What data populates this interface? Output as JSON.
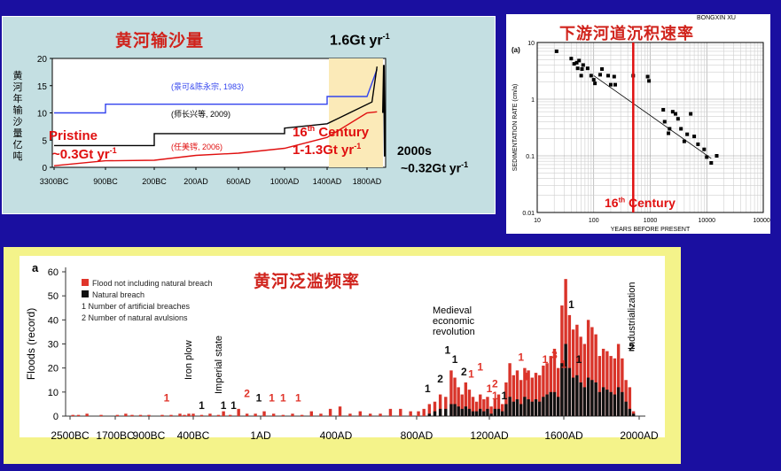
{
  "top_left": {
    "title": "黄河输沙量",
    "ylabel": "黄河年输沙量 亿吨",
    "annotations": {
      "gt_now_num": "1.6Gt yr",
      "gt_now_sup": "-1",
      "pristine": "Pristine",
      "pristine_val": "~0.3Gt yr",
      "pristine_sup": "-1",
      "century_num": "16",
      "century_sup": "th",
      "century_word": " Century",
      "century_val": "1-1.3Gt yr",
      "century_val_sup": "-1",
      "y2000": "2000s",
      "y2000_val": "~0.32Gt yr",
      "y2000_sup": "-1"
    }
  },
  "top_right": {
    "title": "下游河道沉积速率",
    "author": "BONGXIN XU",
    "panel_letter": "(a)",
    "century_num": "16",
    "century_sup": "th",
    "century_word": " Century"
  },
  "bottom": {
    "title": "黄河泛滥频率",
    "panel_letter": "a"
  },
  "chart_data": [
    {
      "type": "line",
      "ylabel": "黄河年输沙量 亿吨",
      "ylim": [
        0,
        20
      ],
      "yticks": [
        "0",
        "5",
        "10",
        "15",
        "20"
      ],
      "xtick_labels": [
        "3300BC",
        "900BC",
        "200BC",
        "200AD",
        "600AD",
        "1000AD",
        "1400AD",
        "1800AD"
      ],
      "series": [
        {
          "name": "(景可&陈永宗, 1983)",
          "color": "#3344ee",
          "points": [
            [
              "3300BC",
              10
            ],
            [
              "900BC",
              10
            ],
            [
              "900BC",
              11.6
            ],
            [
              "1400AD",
              11.6
            ],
            [
              "1400AD",
              13
            ],
            [
              "1800AD",
              13
            ],
            [
              "1900AD",
              18
            ]
          ]
        },
        {
          "name": "(师长兴等, 2009)",
          "color": "#000000",
          "points": [
            [
              "3300BC",
              4
            ],
            [
              "200BC",
              4
            ],
            [
              "200BC",
              6.2
            ],
            [
              "1000AD",
              6.2
            ],
            [
              "1000AD",
              7.2
            ],
            [
              "1400AD",
              8
            ],
            [
              "1850AD",
              12
            ],
            [
              "1900AD",
              18.5
            ]
          ]
        },
        {
          "name": "(任美锷, 2006)",
          "color": "#e01010",
          "points": [
            [
              "3300BC",
              0.3
            ],
            [
              "900BC",
              1.2
            ],
            [
              "200BC",
              1.3
            ],
            [
              "200AD",
              2.2
            ],
            [
              "600AD",
              2.6
            ],
            [
              "1000AD",
              3.5
            ],
            [
              "1400AD",
              5.5
            ],
            [
              "1800AD",
              10
            ],
            [
              "1900AD",
              10.2
            ]
          ]
        }
      ]
    },
    {
      "type": "scatter",
      "xlabel": "YEARS BEFORE PRESENT",
      "ylabel": "SEDIMENTATION RATE (cm/a)",
      "xscale": "log",
      "yscale": "log",
      "xtick_labels": [
        "10",
        "100",
        "1000",
        "10000",
        "100000"
      ],
      "ytick_labels": [
        "0.01",
        "0.1",
        "1",
        "10"
      ],
      "xlim": [
        10,
        100000
      ],
      "ylim": [
        0.01,
        10
      ],
      "vertical_line_x": 500,
      "points": [
        [
          22,
          7
        ],
        [
          40,
          5.2
        ],
        [
          45,
          4.2
        ],
        [
          50,
          4.4
        ],
        [
          52,
          3.5
        ],
        [
          55,
          4.8
        ],
        [
          60,
          2.6
        ],
        [
          62,
          3.4
        ],
        [
          65,
          4
        ],
        [
          78,
          3.5
        ],
        [
          90,
          2.6
        ],
        [
          100,
          2.2
        ],
        [
          105,
          1.9
        ],
        [
          130,
          2.7
        ],
        [
          140,
          3.4
        ],
        [
          180,
          2.6
        ],
        [
          200,
          1.8
        ],
        [
          230,
          2.5
        ],
        [
          240,
          1.8
        ],
        [
          500,
          2.6
        ],
        [
          900,
          2.5
        ],
        [
          950,
          2.1
        ],
        [
          1700,
          0.65
        ],
        [
          1800,
          0.4
        ],
        [
          2100,
          0.25
        ],
        [
          2200,
          0.3
        ],
        [
          2500,
          0.6
        ],
        [
          2800,
          0.55
        ],
        [
          3100,
          0.45
        ],
        [
          3500,
          0.3
        ],
        [
          4000,
          0.18
        ],
        [
          4500,
          0.24
        ],
        [
          5200,
          0.55
        ],
        [
          6000,
          0.22
        ],
        [
          7000,
          0.16
        ],
        [
          9000,
          0.13
        ],
        [
          10000,
          0.095
        ],
        [
          12000,
          0.075
        ],
        [
          15000,
          0.1
        ]
      ],
      "trend": [
        [
          100,
          2.6
        ],
        [
          12000,
          0.09
        ]
      ]
    },
    {
      "type": "bar",
      "ylabel": "Floods (record)",
      "ylim": [
        0,
        60
      ],
      "yticks": [
        0,
        10,
        20,
        30,
        40,
        50,
        60
      ],
      "xtick_labels": [
        "2500BC",
        "1700BC",
        "900BC",
        "400BC",
        "1AD",
        "400AD",
        "800AD",
        "1200AD",
        "1600AD",
        "2000AD"
      ],
      "legend": [
        {
          "color": "#e0352b",
          "text": "Flood not including natural breach"
        },
        {
          "color": "#111111",
          "text": "Natural breach"
        },
        {
          "color": "#111111",
          "text": "1 Number of artificial breaches"
        },
        {
          "color": "#e0352b",
          "text": "2 Number of natural avulsions"
        }
      ],
      "vertical_labels": [
        "Iron plow",
        "Imperial state",
        "Industrialization"
      ],
      "event_label": [
        "Medieval",
        "economic",
        "revolution"
      ],
      "years": [
        -2450,
        -2350,
        -2200,
        -1950,
        -1650,
        -1450,
        -1300,
        -1100,
        -900,
        -750,
        -650,
        -550,
        -500,
        -450,
        -400,
        -350,
        -300,
        -250,
        -220,
        -180,
        -130,
        -80,
        -30,
        20,
        70,
        120,
        170,
        220,
        270,
        320,
        370,
        420,
        470,
        520,
        570,
        620,
        670,
        720,
        770,
        810,
        840,
        870,
        900,
        930,
        960,
        990,
        1010,
        1030,
        1050,
        1070,
        1090,
        1110,
        1130,
        1150,
        1170,
        1190,
        1210,
        1230,
        1250,
        1270,
        1290,
        1310,
        1330,
        1350,
        1370,
        1390,
        1410,
        1430,
        1450,
        1470,
        1490,
        1510,
        1530,
        1550,
        1570,
        1590,
        1610,
        1630,
        1650,
        1670,
        1690,
        1710,
        1730,
        1750,
        1770,
        1790,
        1810,
        1830,
        1850,
        1870,
        1890,
        1910,
        1930,
        1950,
        1970
      ],
      "flood_values": [
        0.5,
        0.5,
        1,
        0.5,
        0.5,
        1,
        0.5,
        0.5,
        0.5,
        0.5,
        0.5,
        1,
        0.5,
        1,
        1,
        0.5,
        1,
        0.5,
        2,
        0.5,
        3,
        1,
        1,
        2,
        1,
        0.5,
        1,
        0.5,
        2,
        1,
        3,
        4,
        1,
        2,
        1,
        1,
        3,
        3,
        2,
        2,
        3,
        5,
        6,
        9,
        8,
        19,
        16,
        12,
        9,
        14,
        11,
        8,
        6,
        9,
        7,
        8,
        4,
        7,
        9,
        5,
        14,
        22,
        17,
        19,
        15,
        20,
        19,
        16,
        18,
        17,
        21,
        22,
        25,
        28,
        20,
        46,
        57,
        42,
        36,
        38,
        33,
        30,
        40,
        37,
        34,
        25,
        28,
        27,
        25,
        24,
        30,
        24,
        15,
        12,
        2
      ],
      "breach_values": [
        0,
        0,
        0,
        0,
        0,
        0,
        0,
        0,
        0,
        0,
        0,
        0,
        0,
        0,
        0,
        0,
        0,
        0,
        0,
        0,
        0,
        0,
        0,
        0,
        0,
        0,
        0,
        0,
        0,
        0,
        0,
        0,
        0,
        0,
        0,
        0,
        0,
        0,
        0,
        0,
        0,
        1,
        2,
        3,
        3,
        5,
        5,
        4,
        3,
        4,
        3,
        2,
        2,
        3,
        2,
        3,
        1,
        3,
        3,
        2,
        5,
        8,
        6,
        7,
        5,
        8,
        7,
        6,
        7,
        6,
        8,
        9,
        10,
        10,
        8,
        22,
        30,
        20,
        16,
        17,
        14,
        12,
        16,
        15,
        14,
        10,
        12,
        11,
        10,
        9,
        12,
        10,
        6,
        3,
        1
      ],
      "count_annotations": [
        {
          "text": "1",
          "year": -700,
          "y": 6,
          "color": "#e0352b"
        },
        {
          "text": "1",
          "year": -350,
          "y": 3,
          "color": "#111111"
        },
        {
          "text": "1",
          "year": -220,
          "y": 3,
          "color": "#111111"
        },
        {
          "text": "1",
          "year": -160,
          "y": 3,
          "color": "#111111"
        },
        {
          "text": "2",
          "year": -80,
          "y": 8,
          "color": "#e0352b"
        },
        {
          "text": "1",
          "year": -10,
          "y": 6,
          "color": "#111111"
        },
        {
          "text": "1",
          "year": 60,
          "y": 6,
          "color": "#e0352b"
        },
        {
          "text": "1",
          "year": 120,
          "y": 6,
          "color": "#e0352b"
        },
        {
          "text": "1",
          "year": 200,
          "y": 6,
          "color": "#e0352b"
        },
        {
          "text": "1",
          "year": 860,
          "y": 10,
          "color": "#111111"
        },
        {
          "text": "2",
          "year": 930,
          "y": 14,
          "color": "#111111"
        },
        {
          "text": "1",
          "year": 970,
          "y": 26,
          "color": "#111111"
        },
        {
          "text": "1",
          "year": 1010,
          "y": 22,
          "color": "#111111"
        },
        {
          "text": "2",
          "year": 1060,
          "y": 17,
          "color": "#111111"
        },
        {
          "text": "1",
          "year": 1100,
          "y": 16,
          "color": "#e0352b"
        },
        {
          "text": "1",
          "year": 1150,
          "y": 19,
          "color": "#e0352b"
        },
        {
          "text": "1",
          "year": 1200,
          "y": 10,
          "color": "#e0352b"
        },
        {
          "text": "2",
          "year": 1230,
          "y": 12,
          "color": "#e0352b"
        },
        {
          "text": "1",
          "year": 1230,
          "y": 7,
          "color": "#e0352b"
        },
        {
          "text": "1",
          "year": 1280,
          "y": 7,
          "color": "#111111"
        },
        {
          "text": "1",
          "year": 1370,
          "y": 23,
          "color": "#e0352b"
        },
        {
          "text": "1",
          "year": 1400,
          "y": 15,
          "color": "#e0352b"
        },
        {
          "text": "1",
          "year": 1500,
          "y": 22,
          "color": "#e0352b"
        },
        {
          "text": "3",
          "year": 1550,
          "y": 24,
          "color": "#e0352b"
        },
        {
          "text": "1",
          "year": 1600,
          "y": 20,
          "color": "#e0352b"
        },
        {
          "text": "1",
          "year": 1640,
          "y": 45,
          "color": "#111111"
        },
        {
          "text": "1",
          "year": 1680,
          "y": 22,
          "color": "#111111"
        },
        {
          "text": "2",
          "year": 1960,
          "y": 27,
          "color": "#111111"
        }
      ]
    }
  ]
}
